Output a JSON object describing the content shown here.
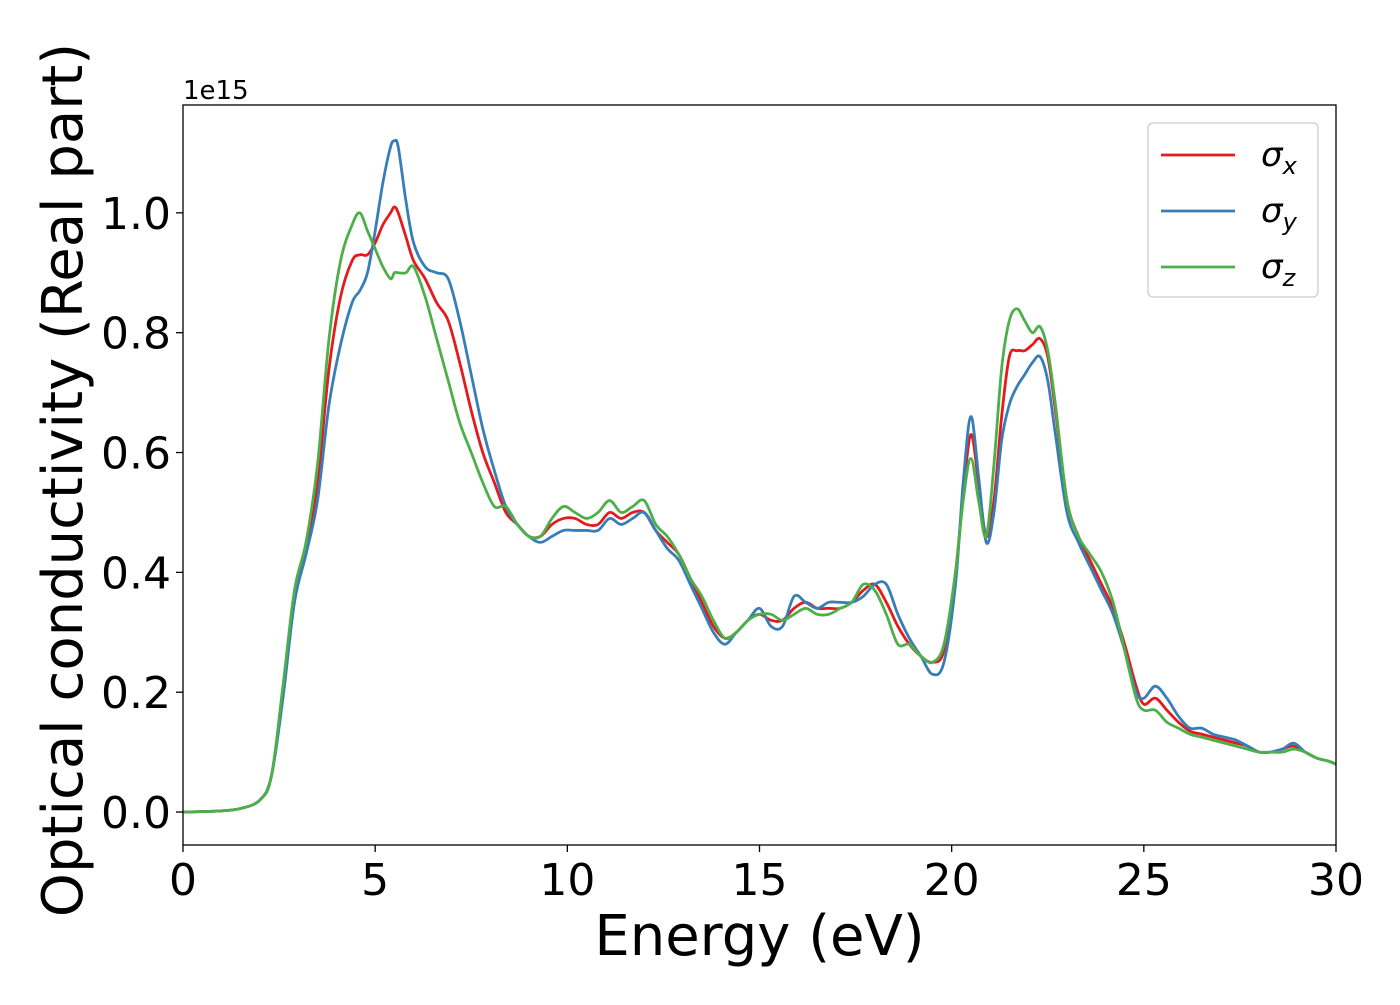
{
  "chart_data": {
    "type": "line",
    "title": "",
    "xlabel": "Energy (eV)",
    "ylabel": "Optical conductivity (Real part)",
    "y_offset_text": "1e15",
    "xlim": [
      0,
      30
    ],
    "ylim": [
      -0.055,
      1.18
    ],
    "x_ticks": [
      0,
      5,
      10,
      15,
      20,
      25,
      30
    ],
    "y_ticks": [
      0.0,
      0.2,
      0.4,
      0.6,
      0.8,
      1.0
    ],
    "x_tick_labels": [
      "0",
      "5",
      "10",
      "15",
      "20",
      "25",
      "30"
    ],
    "y_tick_labels": [
      "0.0",
      "0.2",
      "0.4",
      "0.6",
      "0.8",
      "1.0"
    ],
    "grid": false,
    "legend_position": "top-right",
    "series": [
      {
        "name": "σx",
        "legend_base": "σ",
        "legend_sub": "x",
        "color": "#e41a1c",
        "x": [
          0,
          1,
          1.5,
          2,
          2.3,
          2.6,
          2.9,
          3.2,
          3.5,
          3.8,
          4.1,
          4.4,
          4.6,
          4.8,
          5.0,
          5.2,
          5.4,
          5.5,
          5.6,
          5.8,
          6.0,
          6.3,
          6.6,
          6.9,
          7.2,
          7.5,
          7.8,
          8.1,
          8.4,
          8.7,
          9.0,
          9.3,
          9.6,
          9.9,
          10.2,
          10.5,
          10.8,
          11.1,
          11.4,
          11.7,
          12.0,
          12.3,
          12.6,
          12.9,
          13.2,
          13.5,
          13.8,
          14.1,
          14.4,
          14.7,
          15.0,
          15.3,
          15.6,
          15.9,
          16.2,
          16.5,
          16.8,
          17.1,
          17.4,
          17.7,
          18.0,
          18.3,
          18.6,
          18.9,
          19.2,
          19.5,
          19.8,
          20.1,
          20.3,
          20.5,
          20.7,
          20.9,
          21.1,
          21.3,
          21.5,
          21.7,
          21.9,
          22.1,
          22.3,
          22.5,
          22.7,
          23.0,
          23.3,
          23.6,
          23.9,
          24.2,
          24.5,
          24.8,
          25.0,
          25.3,
          25.6,
          25.9,
          26.2,
          26.5,
          26.8,
          27.1,
          27.4,
          27.7,
          28.0,
          28.3,
          28.6,
          28.9,
          29.2,
          29.5,
          29.8,
          30
        ],
        "y": [
          0.0,
          0.002,
          0.006,
          0.02,
          0.06,
          0.2,
          0.36,
          0.44,
          0.55,
          0.74,
          0.86,
          0.92,
          0.93,
          0.93,
          0.95,
          0.98,
          1.0,
          1.01,
          1.0,
          0.96,
          0.92,
          0.89,
          0.85,
          0.82,
          0.75,
          0.67,
          0.6,
          0.55,
          0.5,
          0.48,
          0.46,
          0.46,
          0.48,
          0.49,
          0.49,
          0.48,
          0.48,
          0.5,
          0.49,
          0.5,
          0.5,
          0.47,
          0.45,
          0.43,
          0.39,
          0.35,
          0.31,
          0.29,
          0.3,
          0.32,
          0.33,
          0.32,
          0.32,
          0.34,
          0.35,
          0.34,
          0.34,
          0.34,
          0.35,
          0.37,
          0.38,
          0.35,
          0.31,
          0.28,
          0.26,
          0.25,
          0.27,
          0.4,
          0.53,
          0.63,
          0.55,
          0.46,
          0.52,
          0.66,
          0.76,
          0.77,
          0.77,
          0.78,
          0.79,
          0.76,
          0.67,
          0.52,
          0.46,
          0.42,
          0.38,
          0.34,
          0.28,
          0.21,
          0.18,
          0.19,
          0.17,
          0.15,
          0.135,
          0.13,
          0.125,
          0.12,
          0.115,
          0.11,
          0.1,
          0.1,
          0.105,
          0.11,
          0.1,
          0.09,
          0.085,
          0.08
        ]
      },
      {
        "name": "σy",
        "legend_base": "σ",
        "legend_sub": "y",
        "color": "#377eb8",
        "x": [
          0,
          1,
          1.5,
          2,
          2.3,
          2.6,
          2.9,
          3.2,
          3.5,
          3.8,
          4.1,
          4.4,
          4.6,
          4.8,
          5.0,
          5.2,
          5.4,
          5.5,
          5.6,
          5.8,
          6.0,
          6.3,
          6.6,
          6.9,
          7.2,
          7.5,
          7.8,
          8.1,
          8.4,
          8.7,
          9.0,
          9.3,
          9.6,
          9.9,
          10.2,
          10.5,
          10.8,
          11.1,
          11.4,
          11.7,
          12.0,
          12.3,
          12.6,
          12.9,
          13.2,
          13.5,
          13.8,
          14.1,
          14.4,
          14.7,
          15.0,
          15.3,
          15.6,
          15.9,
          16.2,
          16.5,
          16.8,
          17.1,
          17.4,
          17.7,
          18.0,
          18.3,
          18.6,
          18.9,
          19.2,
          19.5,
          19.8,
          20.1,
          20.3,
          20.5,
          20.7,
          20.9,
          21.1,
          21.3,
          21.5,
          21.7,
          21.9,
          22.1,
          22.3,
          22.5,
          22.7,
          23.0,
          23.3,
          23.6,
          23.9,
          24.2,
          24.5,
          24.8,
          25.0,
          25.3,
          25.6,
          25.9,
          26.2,
          26.5,
          26.8,
          27.1,
          27.4,
          27.7,
          28.0,
          28.3,
          28.6,
          28.9,
          29.2,
          29.5,
          29.8,
          30
        ],
        "y": [
          0.0,
          0.002,
          0.006,
          0.02,
          0.06,
          0.19,
          0.35,
          0.43,
          0.52,
          0.68,
          0.78,
          0.85,
          0.87,
          0.9,
          0.97,
          1.05,
          1.11,
          1.12,
          1.11,
          1.02,
          0.95,
          0.91,
          0.9,
          0.89,
          0.82,
          0.73,
          0.64,
          0.57,
          0.51,
          0.48,
          0.46,
          0.45,
          0.46,
          0.47,
          0.47,
          0.47,
          0.47,
          0.49,
          0.48,
          0.49,
          0.5,
          0.47,
          0.44,
          0.42,
          0.38,
          0.34,
          0.3,
          0.28,
          0.3,
          0.32,
          0.34,
          0.31,
          0.31,
          0.36,
          0.35,
          0.34,
          0.35,
          0.35,
          0.35,
          0.36,
          0.38,
          0.38,
          0.33,
          0.29,
          0.26,
          0.23,
          0.25,
          0.38,
          0.55,
          0.66,
          0.56,
          0.45,
          0.5,
          0.62,
          0.68,
          0.71,
          0.73,
          0.75,
          0.76,
          0.72,
          0.63,
          0.5,
          0.45,
          0.41,
          0.37,
          0.33,
          0.27,
          0.2,
          0.19,
          0.21,
          0.19,
          0.16,
          0.14,
          0.14,
          0.13,
          0.125,
          0.12,
          0.11,
          0.1,
          0.1,
          0.105,
          0.115,
          0.1,
          0.09,
          0.085,
          0.08
        ]
      },
      {
        "name": "σz",
        "legend_base": "σ",
        "legend_sub": "z",
        "color": "#4daf4a",
        "x": [
          0,
          1,
          1.5,
          2,
          2.3,
          2.6,
          2.9,
          3.2,
          3.5,
          3.8,
          4.1,
          4.4,
          4.6,
          4.8,
          5.0,
          5.2,
          5.4,
          5.5,
          5.6,
          5.8,
          6.0,
          6.3,
          6.6,
          6.9,
          7.2,
          7.5,
          7.8,
          8.1,
          8.4,
          8.7,
          9.0,
          9.3,
          9.6,
          9.9,
          10.2,
          10.5,
          10.8,
          11.1,
          11.4,
          11.7,
          12.0,
          12.3,
          12.6,
          12.9,
          13.2,
          13.5,
          13.8,
          14.1,
          14.4,
          14.7,
          15.0,
          15.3,
          15.6,
          15.9,
          16.2,
          16.5,
          16.8,
          17.1,
          17.4,
          17.7,
          18.0,
          18.3,
          18.6,
          18.9,
          19.2,
          19.5,
          19.8,
          20.1,
          20.3,
          20.5,
          20.7,
          20.9,
          21.1,
          21.3,
          21.5,
          21.7,
          21.9,
          22.1,
          22.3,
          22.5,
          22.7,
          23.0,
          23.3,
          23.6,
          23.9,
          24.2,
          24.5,
          24.8,
          25.0,
          25.3,
          25.6,
          25.9,
          26.2,
          26.5,
          26.8,
          27.1,
          27.4,
          27.7,
          28.0,
          28.3,
          28.6,
          28.9,
          29.2,
          29.5,
          29.8,
          30
        ],
        "y": [
          0.0,
          0.002,
          0.006,
          0.02,
          0.06,
          0.21,
          0.37,
          0.45,
          0.58,
          0.79,
          0.92,
          0.98,
          1.0,
          0.97,
          0.94,
          0.91,
          0.89,
          0.9,
          0.9,
          0.9,
          0.91,
          0.86,
          0.79,
          0.72,
          0.65,
          0.6,
          0.55,
          0.51,
          0.51,
          0.48,
          0.46,
          0.46,
          0.49,
          0.51,
          0.5,
          0.49,
          0.5,
          0.52,
          0.5,
          0.51,
          0.52,
          0.48,
          0.46,
          0.43,
          0.39,
          0.36,
          0.32,
          0.29,
          0.3,
          0.32,
          0.33,
          0.33,
          0.32,
          0.33,
          0.34,
          0.33,
          0.33,
          0.34,
          0.35,
          0.38,
          0.37,
          0.33,
          0.28,
          0.28,
          0.26,
          0.25,
          0.28,
          0.4,
          0.52,
          0.59,
          0.52,
          0.46,
          0.58,
          0.74,
          0.82,
          0.84,
          0.82,
          0.8,
          0.81,
          0.77,
          0.68,
          0.52,
          0.46,
          0.43,
          0.4,
          0.35,
          0.27,
          0.19,
          0.17,
          0.17,
          0.15,
          0.14,
          0.13,
          0.125,
          0.12,
          0.115,
          0.11,
          0.105,
          0.1,
          0.1,
          0.1,
          0.105,
          0.1,
          0.09,
          0.085,
          0.08
        ]
      }
    ]
  }
}
